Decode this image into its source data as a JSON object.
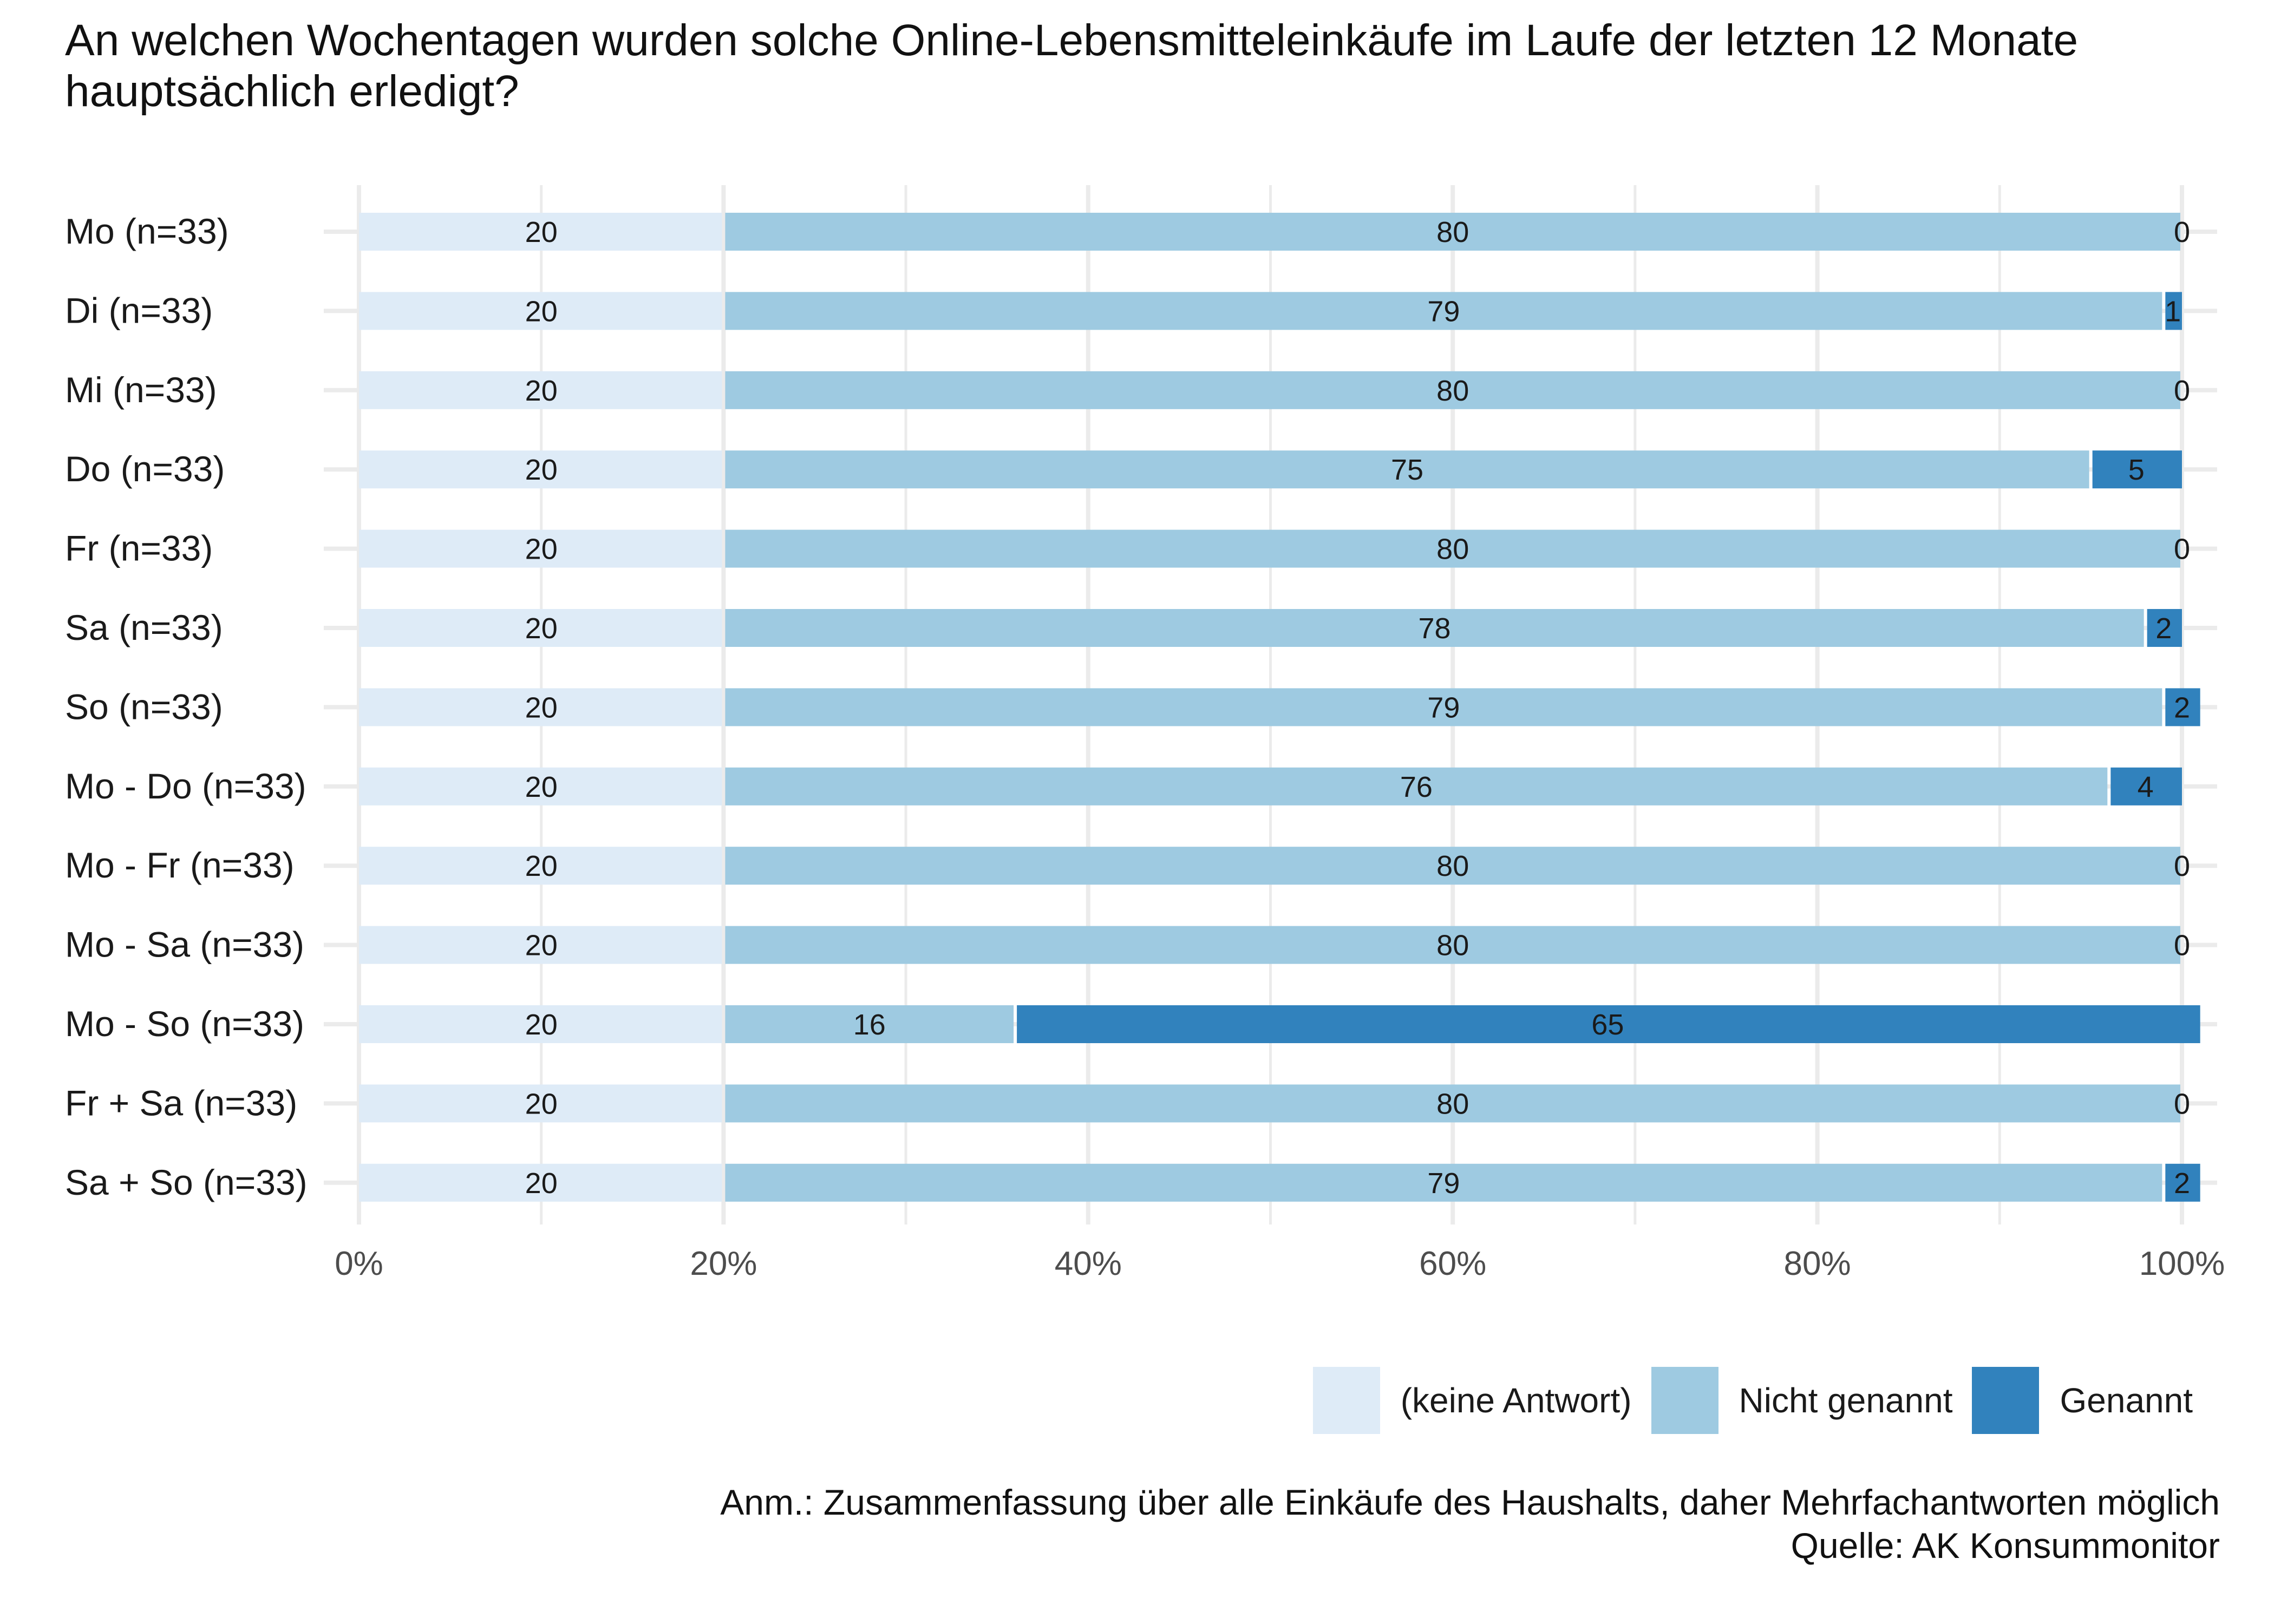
{
  "title": "An welchen Wochentagen wurden solche Online-Lebensmitteleinkäufe im Laufe der letzten 12 Monate hauptsächlich erledigt?",
  "note": "Anm.: Zusammenfassung über alle Einkäufe des Haushalts, daher Mehrfachantworten möglich",
  "source": "Quelle: AK Konsummonitor",
  "colors": {
    "keine_antwort": "#deebf7",
    "nicht_genannt": "#9ecae1",
    "genannt": "#3182bd",
    "grid": "#ebebeb"
  },
  "chart_data": {
    "type": "bar",
    "orientation": "horizontal",
    "stacked": true,
    "title": "An welchen Wochentagen wurden solche Online-Lebensmitteleinkäufe im Laufe der letzten 12 Monate hauptsächlich erledigt?",
    "xlabel": "",
    "ylabel": "",
    "xlim": [
      0,
      100
    ],
    "x_ticks": [
      "0%",
      "20%",
      "40%",
      "60%",
      "80%",
      "100%"
    ],
    "grid": true,
    "legend_position": "bottom-right",
    "categories": [
      "Mo (n=33)",
      "Di (n=33)",
      "Mi (n=33)",
      "Do (n=33)",
      "Fr (n=33)",
      "Sa (n=33)",
      "So (n=33)",
      "Mo - Do (n=33)",
      "Mo - Fr (n=33)",
      "Mo - Sa (n=33)",
      "Mo - So (n=33)",
      "Fr + Sa (n=33)",
      "Sa + So (n=33)"
    ],
    "series": [
      {
        "name": "(keine Antwort)",
        "values": [
          20,
          20,
          20,
          20,
          20,
          20,
          20,
          20,
          20,
          20,
          20,
          20,
          20
        ]
      },
      {
        "name": "Nicht genannt",
        "values": [
          80,
          79,
          80,
          75,
          80,
          78,
          79,
          76,
          80,
          80,
          16,
          80,
          79
        ]
      },
      {
        "name": "Genannt",
        "values": [
          0,
          1,
          0,
          5,
          0,
          2,
          2,
          4,
          0,
          0,
          65,
          0,
          2
        ]
      }
    ]
  }
}
